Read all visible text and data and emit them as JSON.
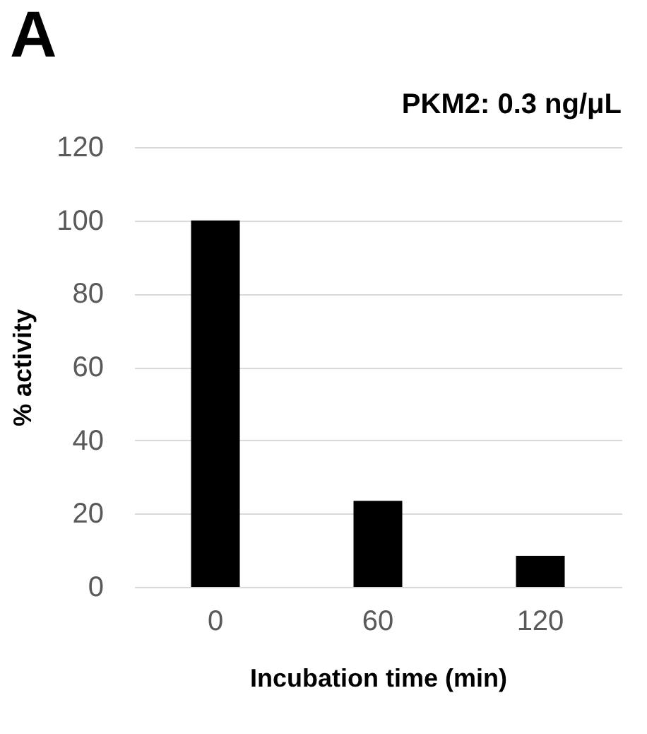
{
  "chart_data": {
    "type": "bar",
    "title": "PKM2: 0.3 ng/μL",
    "xlabel": "Incubation time (min)",
    "ylabel": "% activity",
    "annotations": [
      "A"
    ],
    "categories": [
      "0",
      "60",
      "120"
    ],
    "values": [
      100,
      23.5,
      8.5
    ],
    "color": "#000000",
    "ylim": [
      0,
      120
    ],
    "yticks": [
      0,
      20,
      40,
      60,
      80,
      100,
      120
    ],
    "grid": "y"
  }
}
